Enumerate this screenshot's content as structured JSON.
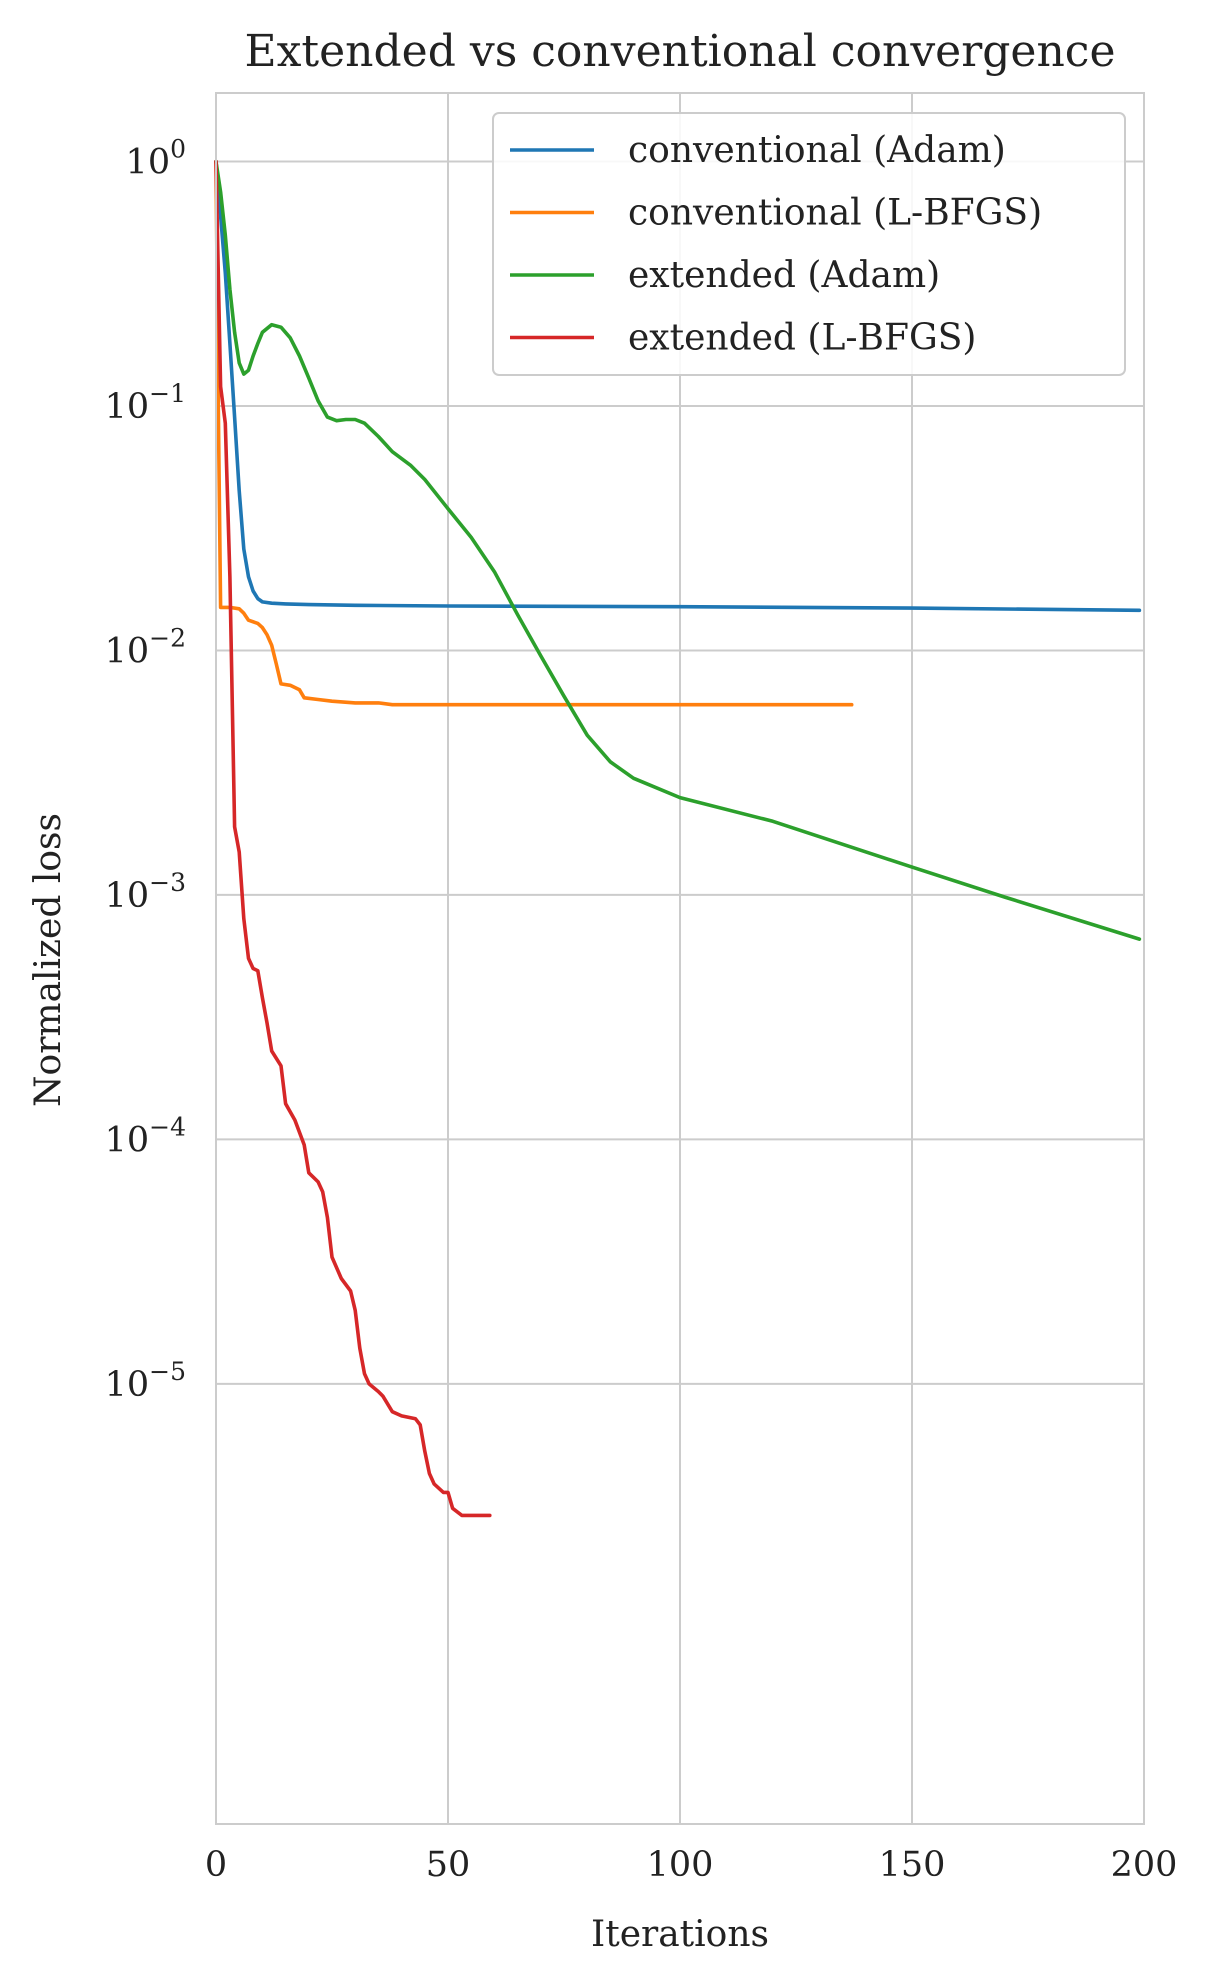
{
  "chart_data": {
    "type": "line",
    "title": "Extended vs conventional convergence",
    "xlabel": "Iterations",
    "ylabel": "Normalized loss",
    "xlim": [
      0,
      200
    ],
    "ylim_log10": [
      -6.8,
      0.28
    ],
    "yscale": "log",
    "grid": true,
    "legend": "top-right",
    "x_ticks": [
      "0",
      "50",
      "100",
      "150",
      "200"
    ],
    "x_tick_values": [
      0,
      50,
      100,
      150,
      200
    ],
    "y_ticks": [
      {
        "base": "10",
        "exp": "0",
        "value": 1
      },
      {
        "base": "10",
        "exp": "−1",
        "value": 0.1
      },
      {
        "base": "10",
        "exp": "−2",
        "value": 0.01
      },
      {
        "base": "10",
        "exp": "−3",
        "value": 0.001
      },
      {
        "base": "10",
        "exp": "−4",
        "value": 0.0001
      },
      {
        "base": "10",
        "exp": "−5",
        "value": 1e-05
      }
    ],
    "series": [
      {
        "name": "conventional (Adam)",
        "color": "#1f77b4",
        "points": [
          [
            0,
            1.0
          ],
          [
            1,
            0.6
          ],
          [
            2,
            0.35
          ],
          [
            3,
            0.18
          ],
          [
            4,
            0.09
          ],
          [
            5,
            0.045
          ],
          [
            6,
            0.026
          ],
          [
            7,
            0.02
          ],
          [
            8,
            0.0175
          ],
          [
            9,
            0.0163
          ],
          [
            10,
            0.0158
          ],
          [
            12,
            0.0156
          ],
          [
            15,
            0.0155
          ],
          [
            20,
            0.0154
          ],
          [
            30,
            0.0153
          ],
          [
            50,
            0.0152
          ],
          [
            100,
            0.0151
          ],
          [
            150,
            0.0149
          ],
          [
            199,
            0.0146
          ]
        ]
      },
      {
        "name": "conventional (L-BFGS)",
        "color": "#ff7f0e",
        "points": [
          [
            0,
            1.0
          ],
          [
            0.5,
            0.1
          ],
          [
            1,
            0.015
          ],
          [
            3,
            0.015
          ],
          [
            5,
            0.0148
          ],
          [
            6,
            0.0142
          ],
          [
            7,
            0.0133
          ],
          [
            9,
            0.0129
          ],
          [
            10,
            0.0124
          ],
          [
            11,
            0.0116
          ],
          [
            12,
            0.0105
          ],
          [
            13,
            0.0088
          ],
          [
            14,
            0.0073
          ],
          [
            16,
            0.0072
          ],
          [
            18,
            0.0069
          ],
          [
            19,
            0.0064
          ],
          [
            22,
            0.0063
          ],
          [
            25,
            0.0062
          ],
          [
            30,
            0.0061
          ],
          [
            35,
            0.0061
          ],
          [
            38,
            0.006
          ],
          [
            50,
            0.006
          ],
          [
            100,
            0.006
          ],
          [
            137,
            0.006
          ]
        ]
      },
      {
        "name": "extended (Adam)",
        "color": "#2ca02c",
        "points": [
          [
            0,
            1.0
          ],
          [
            1,
            0.75
          ],
          [
            2,
            0.5
          ],
          [
            3,
            0.3
          ],
          [
            4,
            0.2
          ],
          [
            5,
            0.15
          ],
          [
            6,
            0.135
          ],
          [
            7,
            0.14
          ],
          [
            8,
            0.16
          ],
          [
            9,
            0.18
          ],
          [
            10,
            0.2
          ],
          [
            12,
            0.215
          ],
          [
            14,
            0.21
          ],
          [
            16,
            0.19
          ],
          [
            18,
            0.16
          ],
          [
            20,
            0.13
          ],
          [
            22,
            0.105
          ],
          [
            24,
            0.09
          ],
          [
            26,
            0.087
          ],
          [
            28,
            0.088
          ],
          [
            30,
            0.088
          ],
          [
            32,
            0.085
          ],
          [
            35,
            0.075
          ],
          [
            38,
            0.065
          ],
          [
            42,
            0.057
          ],
          [
            45,
            0.05
          ],
          [
            50,
            0.038
          ],
          [
            55,
            0.029
          ],
          [
            60,
            0.021
          ],
          [
            65,
            0.014
          ],
          [
            70,
            0.0095
          ],
          [
            75,
            0.0065
          ],
          [
            80,
            0.0045
          ],
          [
            85,
            0.0035
          ],
          [
            90,
            0.003
          ],
          [
            100,
            0.0025
          ],
          [
            120,
            0.002
          ],
          [
            150,
            0.0013
          ],
          [
            170,
            0.00098
          ],
          [
            199,
            0.00066
          ]
        ]
      },
      {
        "name": "extended (L-BFGS)",
        "color": "#d62728",
        "points": [
          [
            0,
            1.0
          ],
          [
            1,
            0.12
          ],
          [
            2,
            0.085
          ],
          [
            3,
            0.02
          ],
          [
            4,
            0.0019
          ],
          [
            5,
            0.0015
          ],
          [
            6,
            0.0008
          ],
          [
            7,
            0.00055
          ],
          [
            8,
            0.0005
          ],
          [
            9,
            0.00049
          ],
          [
            10,
            0.00038
          ],
          [
            11,
            0.0003
          ],
          [
            12,
            0.00023
          ],
          [
            14,
            0.0002
          ],
          [
            15,
            0.00014
          ],
          [
            17,
            0.00012
          ],
          [
            19,
            9.5e-05
          ],
          [
            20,
            7.3e-05
          ],
          [
            22,
            6.7e-05
          ],
          [
            23,
            6.1e-05
          ],
          [
            24,
            4.8e-05
          ],
          [
            25,
            3.3e-05
          ],
          [
            27,
            2.7e-05
          ],
          [
            29,
            2.4e-05
          ],
          [
            30,
            2e-05
          ],
          [
            31,
            1.4e-05
          ],
          [
            32,
            1.1e-05
          ],
          [
            33,
            1e-05
          ],
          [
            35,
            9.3e-06
          ],
          [
            36,
            8.9e-06
          ],
          [
            38,
            7.7e-06
          ],
          [
            40,
            7.4e-06
          ],
          [
            43,
            7.2e-06
          ],
          [
            44,
            6.8e-06
          ],
          [
            45,
            5.3e-06
          ],
          [
            46,
            4.3e-06
          ],
          [
            47,
            3.9e-06
          ],
          [
            49,
            3.6e-06
          ],
          [
            50,
            3.6e-06
          ],
          [
            51,
            3.1e-06
          ],
          [
            53,
            2.9e-06
          ],
          [
            59,
            2.9e-06
          ]
        ]
      }
    ]
  }
}
